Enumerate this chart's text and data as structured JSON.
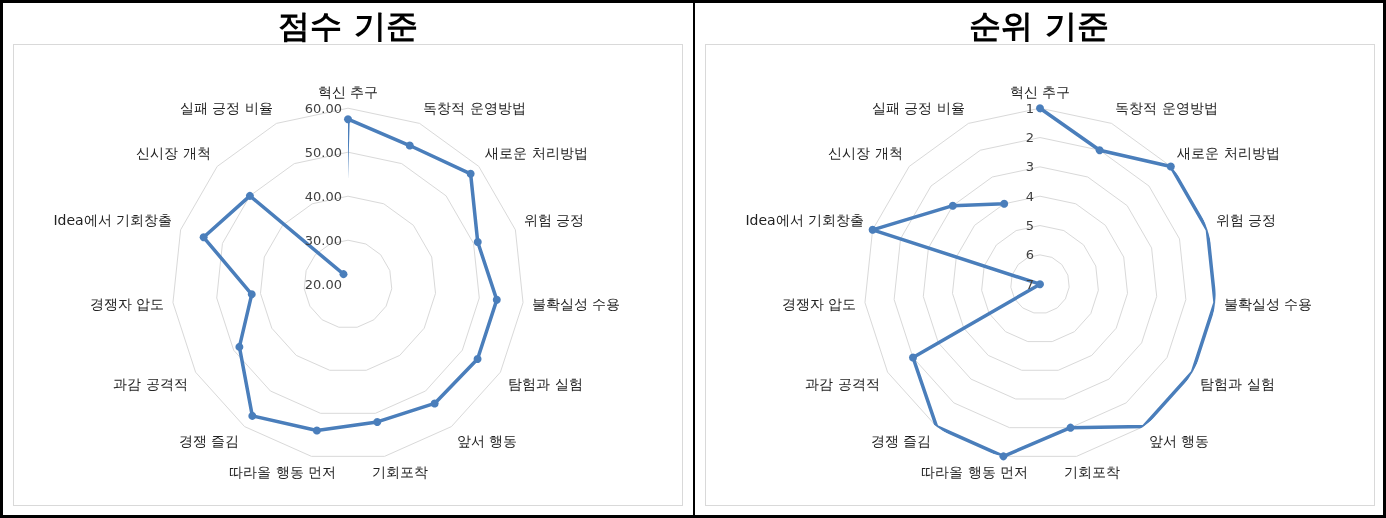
{
  "chart_data": [
    {
      "type": "radar",
      "title": "점수 기준",
      "categories": [
        "혁신 추구",
        "독창적 운영방법",
        "새로운 처리방법",
        "위험 긍정",
        "불확실성 수용",
        "탐험과 실험",
        "앞서 행동",
        "기회포착",
        "따라올 행동 먼저",
        "경쟁 즐김",
        "과감 공격적",
        "경쟁자 압도",
        "Idea에서 기회창출",
        "신시장 개척",
        "실패 긍정 비율"
      ],
      "series": [
        {
          "color": "#4a7ebb",
          "values": [
            57.5,
            54.5,
            57.5,
            51,
            54,
            54,
            53.5,
            52,
            54,
            57,
            48.5,
            42,
            54.5,
            50,
            22.5
          ]
        }
      ],
      "ylim": [
        20,
        60
      ],
      "yticks": [
        {
          "value": 20,
          "label": "20.00"
        },
        {
          "value": 30,
          "label": "30.00"
        },
        {
          "value": 40,
          "label": "40.00"
        },
        {
          "value": 50,
          "label": "50.00"
        },
        {
          "value": 60,
          "label": "60.00"
        }
      ],
      "grid": true,
      "marker": "circle"
    },
    {
      "type": "radar",
      "title": "순위 기준",
      "categories": [
        "혁신 추구",
        "독창적 운영방법",
        "새로운 처리방법",
        "위험 긍정",
        "불확실성 수용",
        "탐험과 실험",
        "앞서 행동",
        "기회포착",
        "따라올 행동 먼저",
        "경쟁 즐김",
        "과감 공격적",
        "경쟁자 압도",
        "Idea에서 기회창출",
        "신시장 개척",
        "실패 긍정 비율"
      ],
      "series": [
        {
          "color": "#4a7ebb",
          "values": [
            1,
            2,
            1,
            1,
            1,
            1,
            1,
            2,
            1,
            1,
            2,
            7,
            1,
            3,
            4
          ]
        }
      ],
      "ylim": [
        7,
        1
      ],
      "yticks": [
        1,
        2,
        3,
        4,
        5,
        6,
        7
      ],
      "grid": true,
      "marker": "circle"
    }
  ]
}
